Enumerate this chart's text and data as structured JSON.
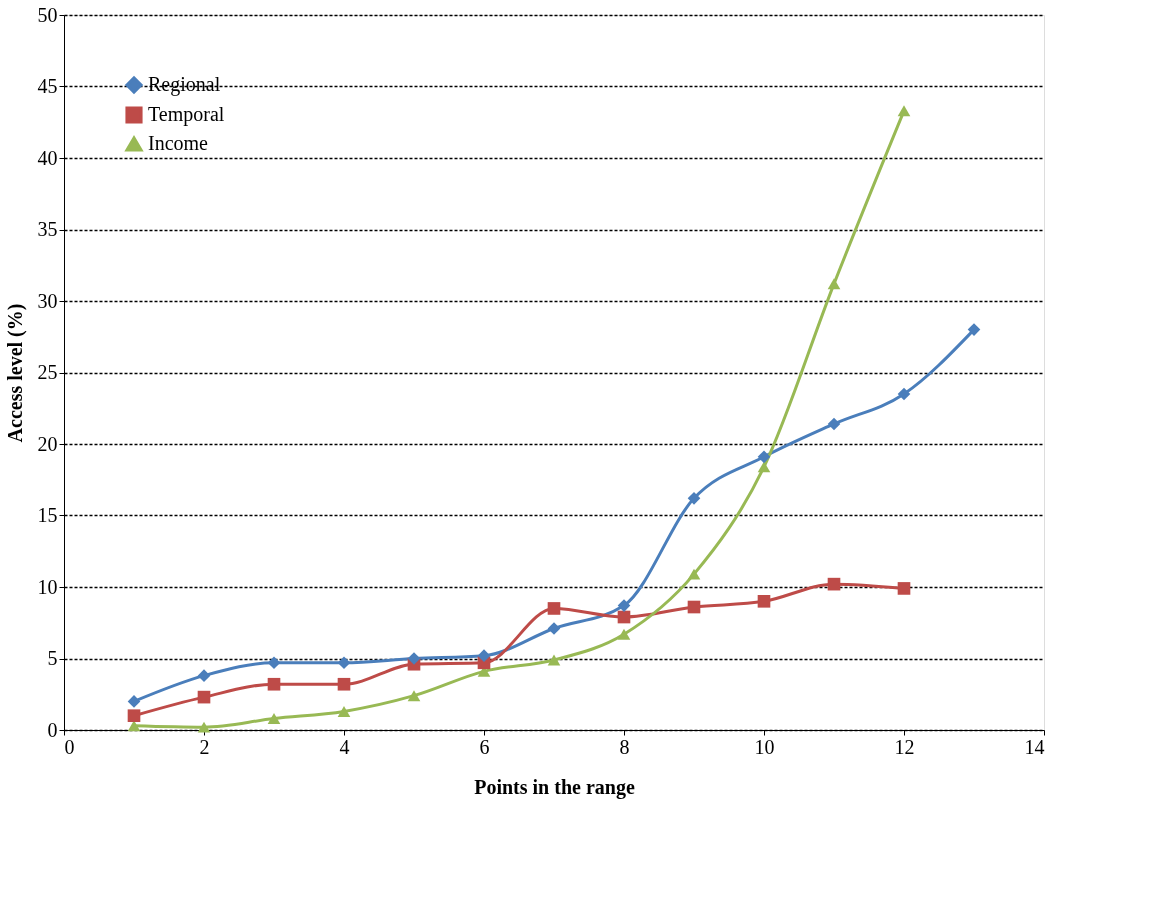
{
  "chart_data": {
    "type": "line",
    "xlabel": "Points in the range",
    "ylabel": "Access level (%)",
    "xlim": [
      0,
      14
    ],
    "xticks": [
      0,
      2,
      4,
      6,
      8,
      10,
      12,
      14
    ],
    "ylim": [
      0,
      50
    ],
    "yticks": [
      0,
      5,
      10,
      15,
      20,
      25,
      30,
      35,
      40,
      45,
      50
    ],
    "grid": "y",
    "legend": "top left",
    "line_style": "solid",
    "series": [
      {
        "name": "Regional",
        "color": "#4a7ebb",
        "marker": "diamond",
        "x": [
          1,
          2,
          3,
          4,
          5,
          6,
          7,
          8,
          9,
          10,
          11,
          12,
          13
        ],
        "values": [
          2.0,
          3.8,
          4.7,
          4.7,
          5.0,
          5.2,
          7.1,
          8.7,
          16.2,
          19.1,
          21.4,
          23.5,
          28.0
        ]
      },
      {
        "name": "Temporal",
        "color": "#be4b48",
        "marker": "square",
        "x": [
          1,
          2,
          3,
          4,
          5,
          6,
          7,
          8,
          9,
          10,
          11,
          12
        ],
        "values": [
          1.0,
          2.3,
          3.2,
          3.2,
          4.6,
          4.7,
          8.5,
          7.9,
          8.6,
          9.0,
          10.2,
          9.9
        ]
      },
      {
        "name": "Income",
        "color": "#98b954",
        "marker": "triangle",
        "x": [
          1,
          2,
          3,
          4,
          5,
          6,
          7,
          8,
          9,
          10,
          11,
          12
        ],
        "values": [
          0.3,
          0.2,
          0.8,
          1.3,
          2.4,
          4.1,
          4.9,
          6.7,
          10.9,
          18.4,
          31.2,
          43.3
        ]
      }
    ]
  }
}
